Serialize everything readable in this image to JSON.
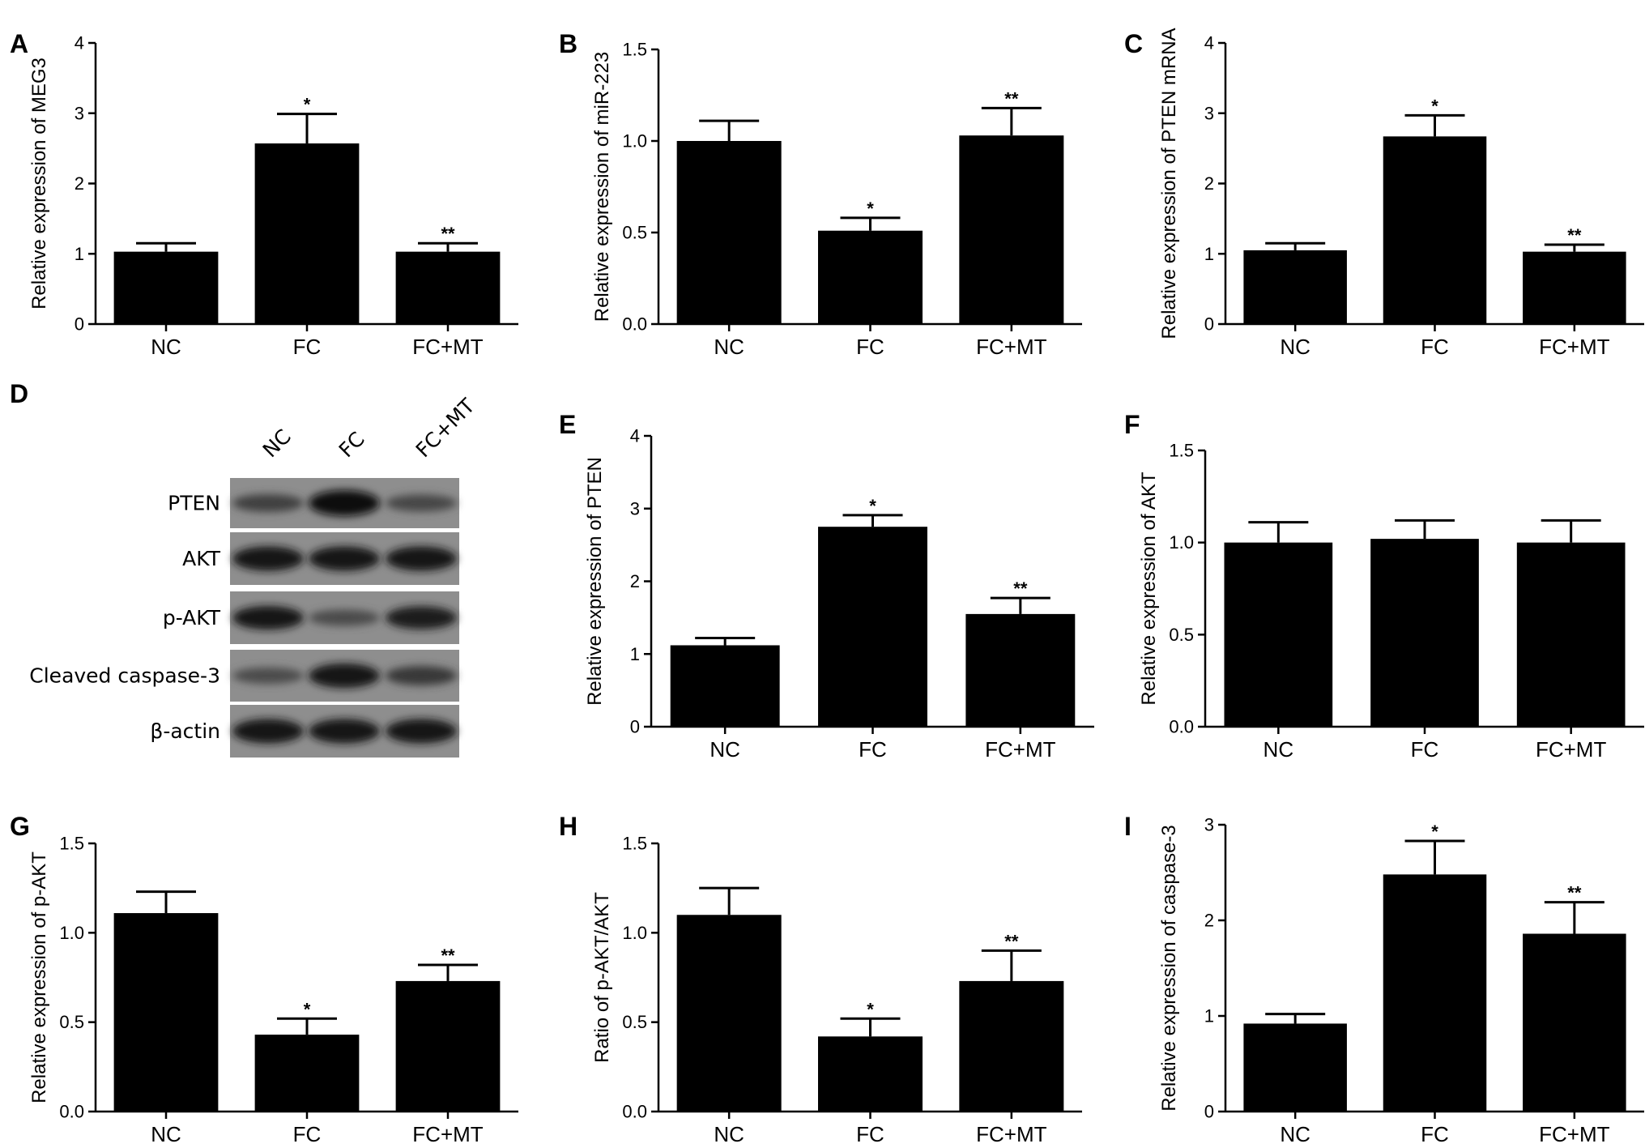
{
  "chart_data": [
    {
      "panel": "A",
      "type": "bar",
      "ylabel": "Relative expression of MEG3",
      "categories": [
        "NC",
        "FC",
        "FC+MT"
      ],
      "values": [
        1.03,
        2.57,
        1.03
      ],
      "errors": [
        0.12,
        0.42,
        0.12
      ],
      "significance": [
        "",
        "*",
        "**"
      ],
      "ylim": [
        0,
        4
      ],
      "yticks": [
        "0",
        "1",
        "2",
        "3",
        "4"
      ],
      "ytick_values": [
        0,
        1,
        2,
        3,
        4
      ]
    },
    {
      "panel": "B",
      "type": "bar",
      "ylabel": "Relative expression of miR-223",
      "categories": [
        "NC",
        "FC",
        "FC+MT"
      ],
      "values": [
        1.0,
        0.51,
        1.03
      ],
      "errors": [
        0.11,
        0.07,
        0.15
      ],
      "significance": [
        "",
        "*",
        "**"
      ],
      "ylim": [
        0,
        1.5
      ],
      "yticks": [
        "0.0",
        "0.5",
        "1.0",
        "1.5"
      ],
      "ytick_values": [
        0,
        0.5,
        1.0,
        1.5
      ]
    },
    {
      "panel": "C",
      "type": "bar",
      "ylabel": "Relative expression of PTEN mRNA",
      "categories": [
        "NC",
        "FC",
        "FC+MT"
      ],
      "values": [
        1.05,
        2.67,
        1.03
      ],
      "errors": [
        0.1,
        0.3,
        0.1
      ],
      "significance": [
        "",
        "*",
        "**"
      ],
      "ylim": [
        0,
        4
      ],
      "yticks": [
        "0",
        "1",
        "2",
        "3",
        "4"
      ],
      "ytick_values": [
        0,
        1,
        2,
        3,
        4
      ]
    },
    {
      "panel": "E",
      "type": "bar",
      "ylabel": "Relative expression of PTEN",
      "categories": [
        "NC",
        "FC",
        "FC+MT"
      ],
      "values": [
        1.12,
        2.75,
        1.55
      ],
      "errors": [
        0.1,
        0.16,
        0.22
      ],
      "significance": [
        "",
        "*",
        "**"
      ],
      "ylim": [
        0,
        4
      ],
      "yticks": [
        "0",
        "1",
        "2",
        "3",
        "4"
      ],
      "ytick_values": [
        0,
        1,
        2,
        3,
        4
      ]
    },
    {
      "panel": "F",
      "type": "bar",
      "ylabel": "Relative expression of AKT",
      "categories": [
        "NC",
        "FC",
        "FC+MT"
      ],
      "values": [
        1.0,
        1.02,
        1.0
      ],
      "errors": [
        0.11,
        0.1,
        0.12
      ],
      "significance": [
        "",
        "",
        ""
      ],
      "ylim": [
        0,
        1.5
      ],
      "yticks": [
        "0.0",
        "0.5",
        "1.0",
        "1.5"
      ],
      "ytick_values": [
        0,
        0.5,
        1.0,
        1.5
      ]
    },
    {
      "panel": "G",
      "type": "bar",
      "ylabel": "Relative expression of p-AKT",
      "categories": [
        "NC",
        "FC",
        "FC+MT"
      ],
      "values": [
        1.11,
        0.43,
        0.73
      ],
      "errors": [
        0.12,
        0.09,
        0.09
      ],
      "significance": [
        "",
        "*",
        "**"
      ],
      "ylim": [
        0,
        1.5
      ],
      "yticks": [
        "0.0",
        "0.5",
        "1.0",
        "1.5"
      ],
      "ytick_values": [
        0,
        0.5,
        1.0,
        1.5
      ]
    },
    {
      "panel": "H",
      "type": "bar",
      "ylabel": "Ratio of p-AKT/AKT",
      "categories": [
        "NC",
        "FC",
        "FC+MT"
      ],
      "values": [
        1.1,
        0.42,
        0.73
      ],
      "errors": [
        0.15,
        0.1,
        0.17
      ],
      "significance": [
        "",
        "*",
        "**"
      ],
      "ylim": [
        0,
        1.5
      ],
      "yticks": [
        "0.0",
        "0.5",
        "1.0",
        "1.5"
      ],
      "ytick_values": [
        0,
        0.5,
        1.0,
        1.5
      ]
    },
    {
      "panel": "I",
      "type": "bar",
      "ylabel": "Relative expression of caspase-3",
      "categories": [
        "NC",
        "FC",
        "FC+MT"
      ],
      "values": [
        0.92,
        2.48,
        1.86
      ],
      "errors": [
        0.1,
        0.35,
        0.33
      ],
      "significance": [
        "",
        "*",
        "**"
      ],
      "ylim": [
        0,
        3
      ],
      "yticks": [
        "0",
        "1",
        "2",
        "3"
      ],
      "ytick_values": [
        0,
        1,
        2,
        3
      ]
    }
  ],
  "blot": {
    "panel": "D",
    "lanes": [
      "NC",
      "FC",
      "FC+MT"
    ],
    "rows": [
      "PTEN",
      "AKT",
      "p-AKT",
      "Cleaved caspase-3",
      "β-actin"
    ],
    "band_intensity": [
      [
        0.45,
        1.0,
        0.4
      ],
      [
        0.9,
        0.9,
        0.9
      ],
      [
        0.85,
        0.35,
        0.8
      ],
      [
        0.35,
        0.9,
        0.55
      ],
      [
        0.9,
        0.9,
        0.9
      ]
    ]
  }
}
